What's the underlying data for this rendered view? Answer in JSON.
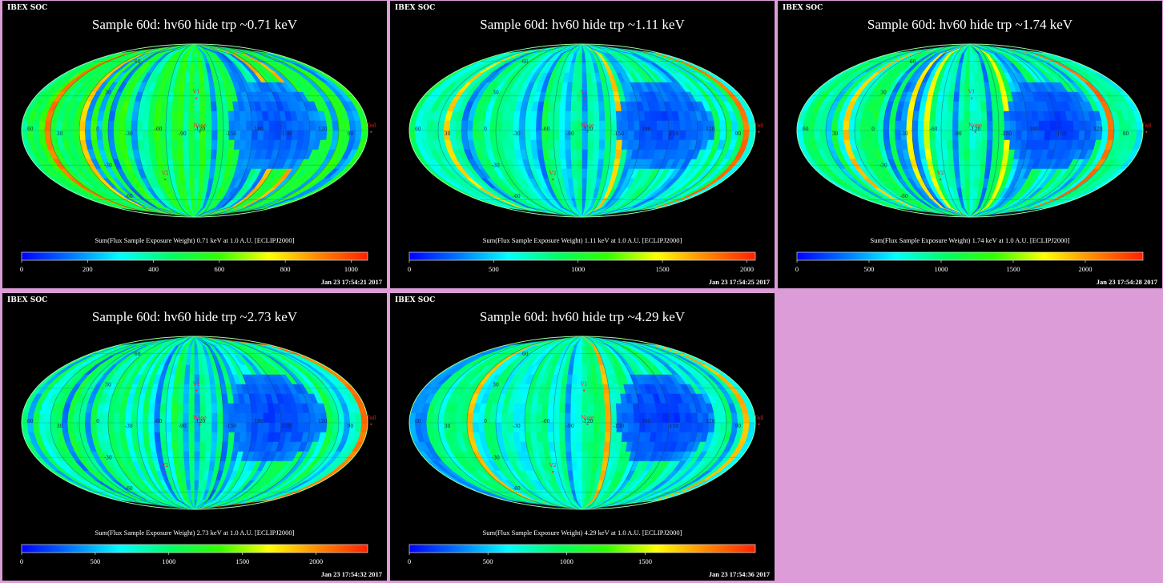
{
  "colors": {
    "background": "#dc9cd8",
    "panel_background": "#000000",
    "label_red": "#ff2020",
    "label_dark": "#1a1a4a"
  },
  "colormap": [
    "#0000ff",
    "#0078ff",
    "#00ffff",
    "#00ff66",
    "#33ff00",
    "#ffff00",
    "#ff8800",
    "#ff2000"
  ],
  "chart_data": [
    {
      "type": "heatmap",
      "projection": "mollweide",
      "header": "IBEX SOC",
      "title": "Sample 60d: hv60 hide trp ~0.71 keV",
      "colorbar_label": "Sum(Flux Sample Exposure Weight)  0.71 keV at 1.0 A.U. [ECLIPJ2000]",
      "colorbar_range": [
        0,
        1050
      ],
      "colorbar_ticks": [
        "0",
        "200",
        "400",
        "600",
        "800",
        "1000"
      ],
      "colorbar_tick_values": [
        0,
        200,
        400,
        600,
        800,
        1000
      ],
      "timestamp": "Jan 23 17:54:21 2017",
      "seed": 3,
      "base_level": 0.46,
      "low_region_level": 0.1,
      "markers": [
        "V1",
        "Nose",
        "V2",
        "Tail"
      ],
      "lon_labels": [
        "60",
        "30",
        "0",
        "-30",
        "-60",
        "-90",
        "-120",
        "-150",
        "180",
        "150",
        "120",
        "90"
      ],
      "lat_labels": [
        "60",
        "30",
        "-30",
        "-60"
      ]
    },
    {
      "type": "heatmap",
      "projection": "mollweide",
      "header": "IBEX SOC",
      "title": "Sample 60d: hv60 hide trp ~1.11 keV",
      "colorbar_label": "Sum(Flux Sample Exposure Weight)  1.11 keV at 1.0 A.U. [ECLIPJ2000]",
      "colorbar_range": [
        0,
        2050
      ],
      "colorbar_ticks": [
        "0",
        "500",
        "1000",
        "1500",
        "2000"
      ],
      "colorbar_tick_values": [
        0,
        500,
        1000,
        1500,
        2000
      ],
      "timestamp": "Jan 23 17:54:25 2017",
      "seed": 11,
      "base_level": 0.36,
      "low_region_level": 0.09,
      "markers": [
        "V1",
        "Nose",
        "V2",
        "Tail"
      ],
      "lon_labels": [
        "60",
        "30",
        "0",
        "-30",
        "-60",
        "-90",
        "-120",
        "-150",
        "180",
        "150",
        "120",
        "90"
      ],
      "lat_labels": [
        "60",
        "30",
        "-30",
        "-60"
      ]
    },
    {
      "type": "heatmap",
      "projection": "mollweide",
      "header": "IBEX SOC",
      "title": "Sample 60d: hv60 hide trp ~1.74 keV",
      "colorbar_label": "Sum(Flux Sample Exposure Weight)  1.74 keV at 1.0 A.U. [ECLIPJ2000]",
      "colorbar_range": [
        0,
        2400
      ],
      "colorbar_ticks": [
        "0",
        "500",
        "1000",
        "1500",
        "2000"
      ],
      "colorbar_tick_values": [
        0,
        500,
        1000,
        1500,
        2000
      ],
      "timestamp": "Jan 23 17:54:28 2017",
      "seed": 21,
      "base_level": 0.37,
      "low_region_level": 0.08,
      "markers": [
        "V1",
        "Nose",
        "V2",
        "Tail"
      ],
      "lon_labels": [
        "60",
        "30",
        "0",
        "-30",
        "-60",
        "-90",
        "-120",
        "-150",
        "180",
        "150",
        "120",
        "90"
      ],
      "lat_labels": [
        "60",
        "30",
        "-30",
        "-60"
      ]
    },
    {
      "type": "heatmap",
      "projection": "mollweide",
      "header": "IBEX SOC",
      "title": "Sample 60d: hv60 hide trp ~2.73 keV",
      "colorbar_label": "Sum(Flux Sample Exposure Weight)  2.73 keV at 1.0 A.U. [ECLIPJ2000]",
      "colorbar_range": [
        0,
        2350
      ],
      "colorbar_ticks": [
        "0",
        "500",
        "1000",
        "1500",
        "2000"
      ],
      "colorbar_tick_values": [
        0,
        500,
        1000,
        1500,
        2000
      ],
      "timestamp": "Jan 23 17:54:32 2017",
      "seed": 31,
      "base_level": 0.38,
      "low_region_level": 0.08,
      "markers": [
        "V1",
        "Nose",
        "V2",
        "Tail"
      ],
      "lon_labels": [
        "60",
        "30",
        "0",
        "-30",
        "-60",
        "-90",
        "-120",
        "-150",
        "180",
        "150",
        "120",
        "90"
      ],
      "lat_labels": [
        "60",
        "30",
        "-30",
        "-60"
      ]
    },
    {
      "type": "heatmap",
      "projection": "mollweide",
      "header": "IBEX SOC",
      "title": "Sample 60d: hv60 hide trp ~4.29 keV",
      "colorbar_label": "Sum(Flux Sample Exposure Weight)  4.29 keV at 1.0 A.U. [ECLIPJ2000]",
      "colorbar_range": [
        0,
        2200
      ],
      "colorbar_ticks": [
        "0",
        "500",
        "1000",
        "1500"
      ],
      "colorbar_tick_values": [
        0,
        500,
        1000,
        1500
      ],
      "timestamp": "Jan 23 17:54:36 2017",
      "seed": 41,
      "base_level": 0.36,
      "low_region_level": 0.07,
      "markers": [
        "V1",
        "Nose",
        "V2",
        "Tail"
      ],
      "lon_labels": [
        "60",
        "30",
        "0",
        "-30",
        "-60",
        "-90",
        "-120",
        "-150",
        "180",
        "150",
        "120",
        "90"
      ],
      "lat_labels": [
        "60",
        "30",
        "-30",
        "-60"
      ]
    }
  ]
}
